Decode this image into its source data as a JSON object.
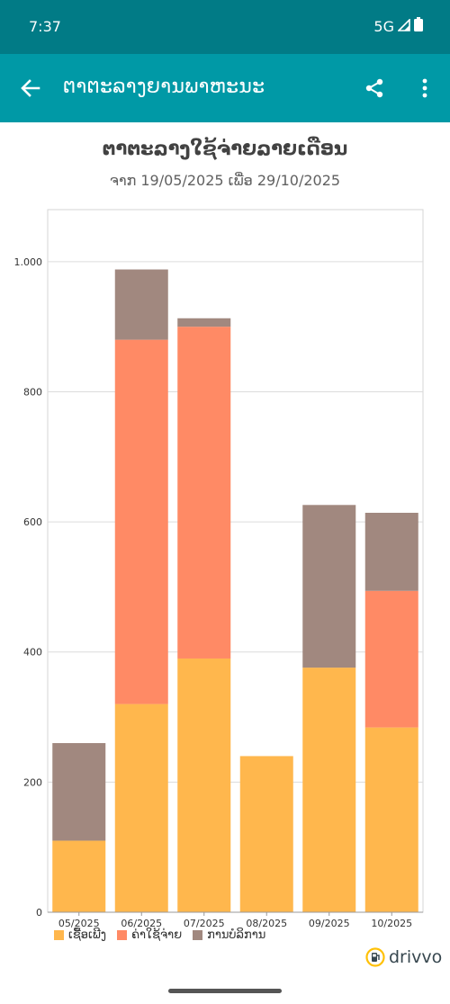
{
  "status": {
    "time": "7:37",
    "network": "5G"
  },
  "app_bar": {
    "title": "ຕາຕະລາງຍານພາຫະນະ"
  },
  "chart_data": {
    "type": "bar",
    "stacked": true,
    "title": "ຕາຕະລາງໃຊ້ຈ່າຍລາຍເດືອນ",
    "subtitle": "ຈາກ 19/05/2025 ເພື່ອ 29/10/2025",
    "xlabel": "",
    "ylabel": "",
    "ylim": [
      0,
      1080
    ],
    "yticks": [
      0,
      200,
      400,
      600,
      800,
      1000
    ],
    "ytick_labels": [
      "0",
      "200",
      "400",
      "600",
      "800",
      "1.000"
    ],
    "grid": true,
    "legend_position": "bottom-left",
    "categories": [
      "05/2025",
      "06/2025",
      "07/2025",
      "08/2025",
      "09/2025",
      "10/2025"
    ],
    "series": [
      {
        "name": "ເຊື້ອເພີງ",
        "color": "#ffb74d",
        "values": [
          110,
          320,
          390,
          240,
          376,
          284
        ]
      },
      {
        "name": "ຄ່າໃຊ້ຈ່າຍ",
        "color": "#ff8a65",
        "values": [
          0,
          560,
          510,
          0,
          0,
          210
        ]
      },
      {
        "name": "ການບໍລິການ",
        "color": "#a1887f",
        "values": [
          150,
          108,
          13,
          0,
          250,
          120
        ]
      }
    ]
  },
  "brand": {
    "name": "drivvo",
    "colors": {
      "ring": "#ffc107",
      "icon": "#37474f"
    }
  },
  "colors": {
    "status_bar": "#017b86",
    "app_bar": "#0099a6"
  }
}
